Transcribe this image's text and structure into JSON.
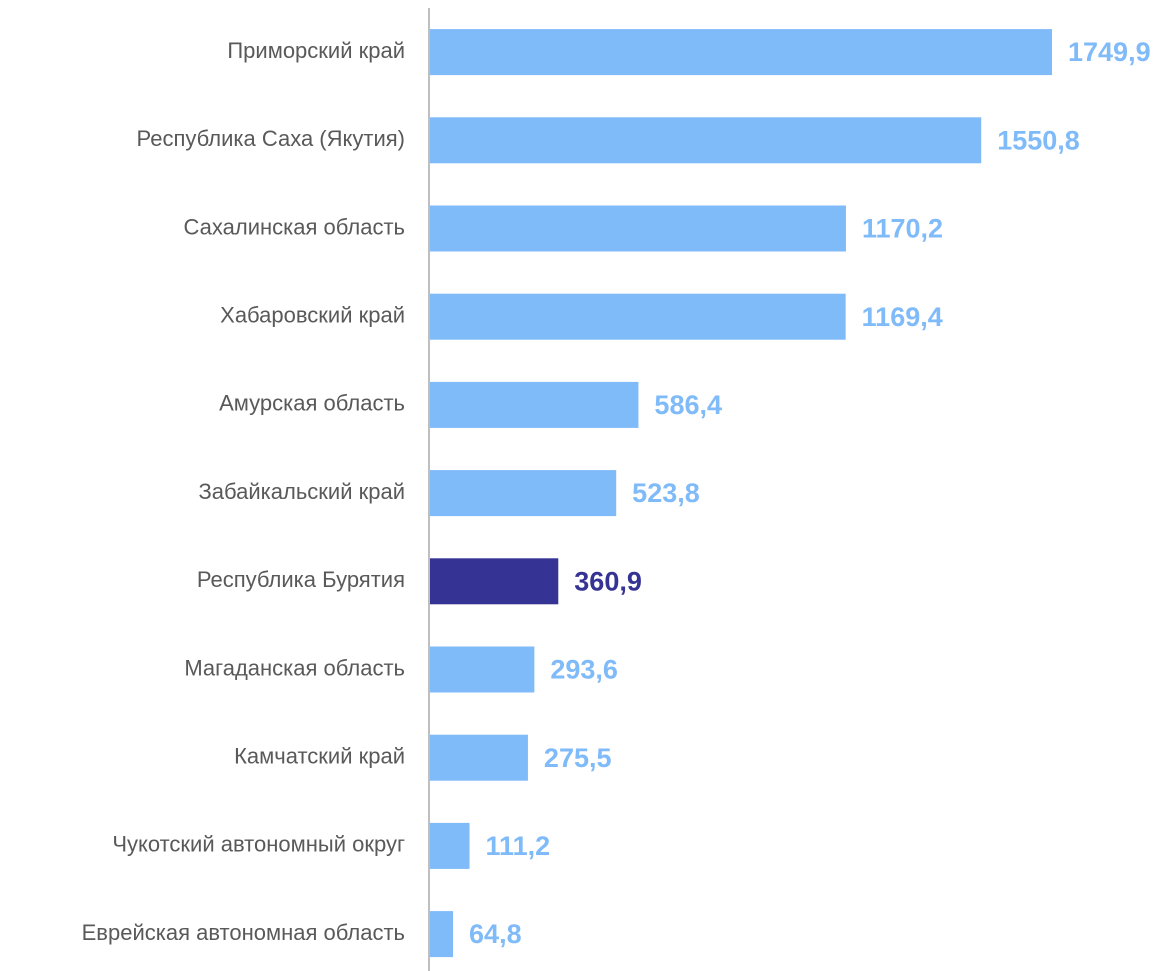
{
  "chart_data": {
    "type": "barh",
    "categories": [
      "Приморский край",
      "Республика Саха (Якутия)",
      "Сахалинская область",
      "Хабаровский край",
      "Амурская область",
      "Забайкальский край",
      "Республика Бурятия",
      "Магаданская область",
      "Камчатский край",
      "Чукотский автономный округ",
      "Еврейская автономная область"
    ],
    "values": [
      1749.9,
      1550.8,
      1170.2,
      1169.4,
      586.4,
      523.8,
      360.9,
      293.6,
      275.5,
      111.2,
      64.8
    ],
    "value_labels": [
      "1749,9",
      "1550,8",
      "1170,2",
      "1169,4",
      "586,4",
      "523,8",
      "360,9",
      "293,6",
      "275,5",
      "111,2",
      "64,8"
    ],
    "colors": [
      "#7fbaf9",
      "#7fbaf9",
      "#7fbaf9",
      "#7fbaf9",
      "#7fbaf9",
      "#7fbaf9",
      "#353394",
      "#7fbaf9",
      "#7fbaf9",
      "#7fbaf9",
      "#7fbaf9"
    ]
  }
}
